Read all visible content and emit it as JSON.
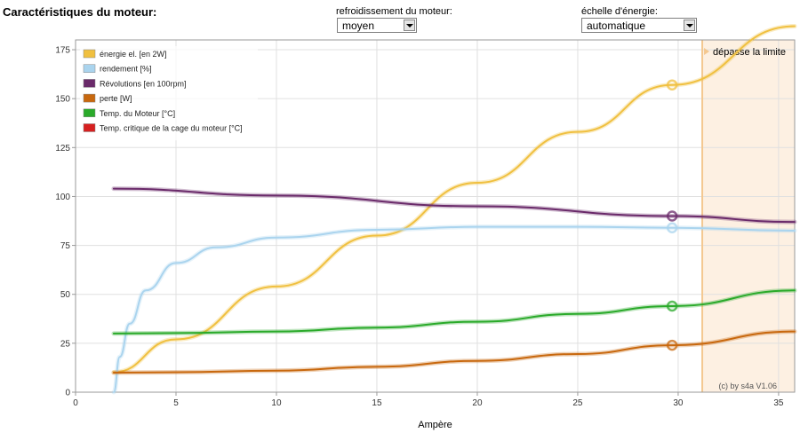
{
  "page_title": "Caractéristiques du moteur:",
  "cooling": {
    "label": "refroidissement du moteur:",
    "value": "moyen"
  },
  "scale": {
    "label": "échelle d'énergie:",
    "value": "automatique"
  },
  "chart_data": {
    "type": "line",
    "xlabel": "Ampère",
    "ylabel": "",
    "xlim": [
      0,
      35.8
    ],
    "ylim": [
      0,
      180
    ],
    "xticks": [
      0,
      5,
      10,
      15,
      20,
      25,
      30,
      35
    ],
    "yticks": [
      0,
      25,
      50,
      75,
      100,
      125,
      150,
      175
    ],
    "grid": true,
    "legend_position": "top-left",
    "limit_region": {
      "from": 31.2,
      "label": "dépasse la limite",
      "color": "#fdf0e2"
    },
    "marker_x": 29.7,
    "annotation": "(c) by s4a    V1.06",
    "series": [
      {
        "name": "énergie el. [en 2W]",
        "color": "#f0c040",
        "x": [
          1.9,
          5,
          10,
          15,
          20,
          25,
          29.7,
          35.8
        ],
        "y": [
          10.2,
          27,
          54,
          80,
          107,
          133,
          157,
          187
        ]
      },
      {
        "name": "rendement [%]",
        "color": "#aad4ee",
        "x": [
          1.9,
          2.2,
          2.7,
          3.5,
          5,
          7,
          10,
          15,
          20,
          25,
          29.7,
          35.8
        ],
        "y": [
          0,
          18,
          35,
          52,
          66,
          74,
          79,
          83,
          84.5,
          84.5,
          84,
          82.5
        ]
      },
      {
        "name": "Révolutions [en 100rpm]",
        "color": "#6a2a6a",
        "x": [
          1.9,
          10,
          20,
          29.7,
          35.8
        ],
        "y": [
          104,
          100.5,
          95,
          90,
          87
        ]
      },
      {
        "name": "perte [W]",
        "color": "#c8680e",
        "x": [
          1.9,
          5,
          10,
          15,
          20,
          25,
          29.7,
          35.8
        ],
        "y": [
          10,
          10.2,
          11,
          13,
          16,
          19.5,
          24,
          31
        ]
      },
      {
        "name": "Temp. du Moteur [°C]",
        "color": "#2aaa2a",
        "x": [
          1.9,
          5,
          10,
          15,
          20,
          25,
          29.7,
          35.8
        ],
        "y": [
          30,
          30.2,
          31,
          33,
          36,
          40,
          44,
          52
        ]
      },
      {
        "name": "Temp. critique de la cage du moteur [°C]",
        "color": "#d62020",
        "x": [],
        "y": []
      }
    ]
  }
}
